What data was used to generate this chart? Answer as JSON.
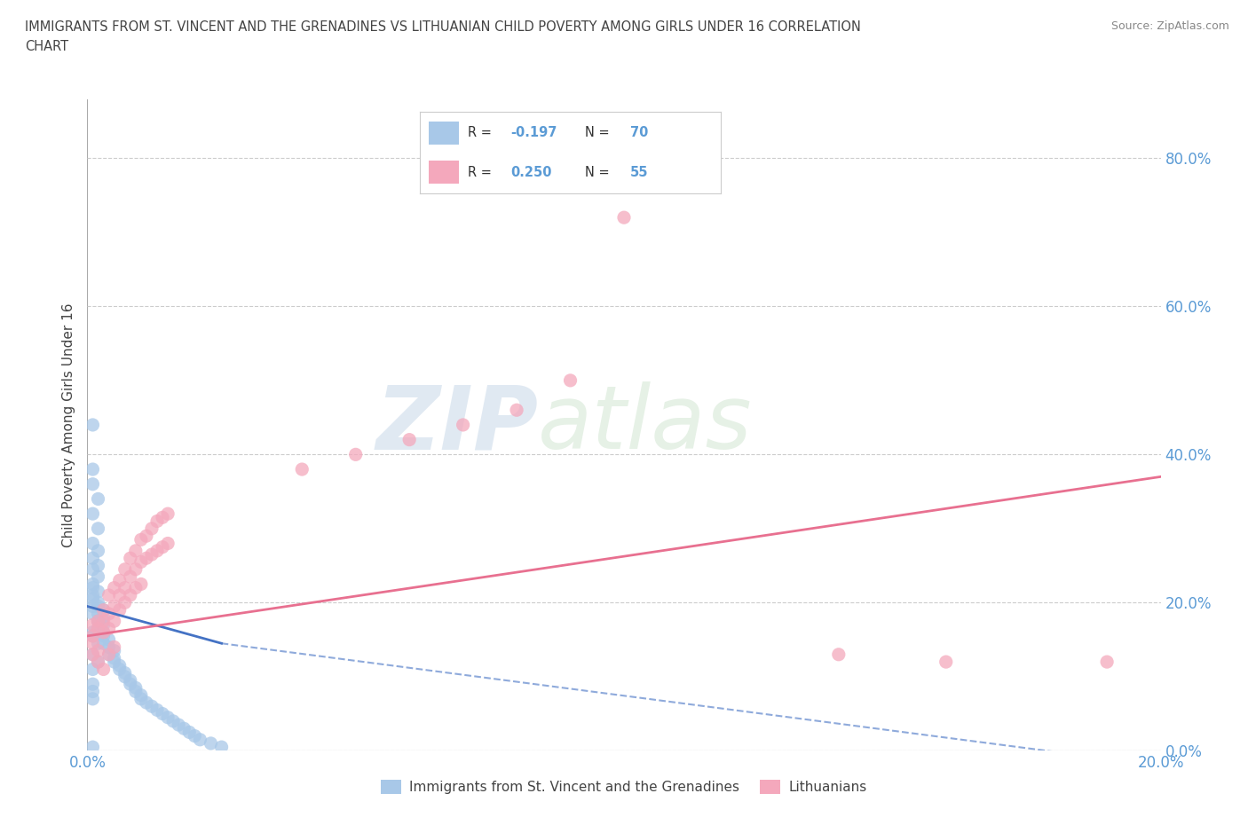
{
  "title_line1": "IMMIGRANTS FROM ST. VINCENT AND THE GRENADINES VS LITHUANIAN CHILD POVERTY AMONG GIRLS UNDER 16 CORRELATION",
  "title_line2": "CHART",
  "source": "Source: ZipAtlas.com",
  "ylabel": "Child Poverty Among Girls Under 16",
  "xlim": [
    0.0,
    0.2
  ],
  "ylim": [
    0.0,
    0.88
  ],
  "yticks": [
    0.0,
    0.2,
    0.4,
    0.6,
    0.8
  ],
  "ytick_labels": [
    "0.0%",
    "20.0%",
    "40.0%",
    "60.0%",
    "80.0%"
  ],
  "xticks": [
    0.0,
    0.05,
    0.1,
    0.15,
    0.2
  ],
  "xtick_labels": [
    "0.0%",
    "",
    "",
    "",
    "20.0%"
  ],
  "legend_r1": "R = -0.197",
  "legend_n1": "N = 70",
  "legend_r2": "R = 0.250",
  "legend_n2": "N = 55",
  "blue_color": "#a8c8e8",
  "pink_color": "#f4a8bc",
  "blue_line_color": "#4472c4",
  "pink_line_color": "#e87090",
  "watermark_zip": "ZIP",
  "watermark_atlas": "atlas",
  "blue_scatter": [
    [
      0.001,
      0.44
    ],
    [
      0.001,
      0.38
    ],
    [
      0.001,
      0.36
    ],
    [
      0.002,
      0.34
    ],
    [
      0.001,
      0.32
    ],
    [
      0.002,
      0.3
    ],
    [
      0.001,
      0.28
    ],
    [
      0.002,
      0.27
    ],
    [
      0.001,
      0.26
    ],
    [
      0.002,
      0.25
    ],
    [
      0.001,
      0.245
    ],
    [
      0.002,
      0.235
    ],
    [
      0.001,
      0.225
    ],
    [
      0.002,
      0.215
    ],
    [
      0.001,
      0.205
    ],
    [
      0.002,
      0.2
    ],
    [
      0.001,
      0.195
    ],
    [
      0.002,
      0.185
    ],
    [
      0.003,
      0.18
    ],
    [
      0.002,
      0.175
    ],
    [
      0.003,
      0.17
    ],
    [
      0.002,
      0.165
    ],
    [
      0.003,
      0.16
    ],
    [
      0.003,
      0.155
    ],
    [
      0.004,
      0.15
    ],
    [
      0.003,
      0.145
    ],
    [
      0.004,
      0.14
    ],
    [
      0.005,
      0.135
    ],
    [
      0.004,
      0.13
    ],
    [
      0.005,
      0.125
    ],
    [
      0.005,
      0.12
    ],
    [
      0.006,
      0.115
    ],
    [
      0.006,
      0.11
    ],
    [
      0.007,
      0.105
    ],
    [
      0.007,
      0.1
    ],
    [
      0.008,
      0.095
    ],
    [
      0.008,
      0.09
    ],
    [
      0.009,
      0.085
    ],
    [
      0.009,
      0.08
    ],
    [
      0.01,
      0.075
    ],
    [
      0.01,
      0.07
    ],
    [
      0.011,
      0.065
    ],
    [
      0.012,
      0.06
    ],
    [
      0.013,
      0.055
    ],
    [
      0.014,
      0.05
    ],
    [
      0.015,
      0.045
    ],
    [
      0.016,
      0.04
    ],
    [
      0.017,
      0.035
    ],
    [
      0.018,
      0.03
    ],
    [
      0.019,
      0.025
    ],
    [
      0.02,
      0.02
    ],
    [
      0.021,
      0.015
    ],
    [
      0.023,
      0.01
    ],
    [
      0.025,
      0.005
    ],
    [
      0.001,
      0.22
    ],
    [
      0.001,
      0.21
    ],
    [
      0.002,
      0.195
    ],
    [
      0.003,
      0.19
    ],
    [
      0.001,
      0.185
    ],
    [
      0.002,
      0.175
    ],
    [
      0.001,
      0.16
    ],
    [
      0.001,
      0.155
    ],
    [
      0.002,
      0.145
    ],
    [
      0.001,
      0.13
    ],
    [
      0.002,
      0.12
    ],
    [
      0.001,
      0.11
    ],
    [
      0.001,
      0.09
    ],
    [
      0.001,
      0.08
    ],
    [
      0.001,
      0.07
    ],
    [
      0.001,
      0.005
    ]
  ],
  "pink_scatter": [
    [
      0.001,
      0.17
    ],
    [
      0.001,
      0.155
    ],
    [
      0.001,
      0.145
    ],
    [
      0.002,
      0.175
    ],
    [
      0.002,
      0.165
    ],
    [
      0.002,
      0.135
    ],
    [
      0.003,
      0.19
    ],
    [
      0.003,
      0.175
    ],
    [
      0.003,
      0.16
    ],
    [
      0.004,
      0.21
    ],
    [
      0.004,
      0.185
    ],
    [
      0.004,
      0.165
    ],
    [
      0.005,
      0.22
    ],
    [
      0.005,
      0.195
    ],
    [
      0.005,
      0.175
    ],
    [
      0.006,
      0.23
    ],
    [
      0.006,
      0.21
    ],
    [
      0.006,
      0.19
    ],
    [
      0.007,
      0.245
    ],
    [
      0.007,
      0.22
    ],
    [
      0.007,
      0.2
    ],
    [
      0.008,
      0.26
    ],
    [
      0.008,
      0.235
    ],
    [
      0.008,
      0.21
    ],
    [
      0.009,
      0.27
    ],
    [
      0.009,
      0.245
    ],
    [
      0.009,
      0.22
    ],
    [
      0.01,
      0.285
    ],
    [
      0.01,
      0.255
    ],
    [
      0.01,
      0.225
    ],
    [
      0.011,
      0.29
    ],
    [
      0.011,
      0.26
    ],
    [
      0.012,
      0.3
    ],
    [
      0.012,
      0.265
    ],
    [
      0.013,
      0.31
    ],
    [
      0.013,
      0.27
    ],
    [
      0.014,
      0.315
    ],
    [
      0.014,
      0.275
    ],
    [
      0.015,
      0.32
    ],
    [
      0.015,
      0.28
    ],
    [
      0.001,
      0.13
    ],
    [
      0.002,
      0.12
    ],
    [
      0.003,
      0.11
    ],
    [
      0.004,
      0.13
    ],
    [
      0.005,
      0.14
    ],
    [
      0.04,
      0.38
    ],
    [
      0.05,
      0.4
    ],
    [
      0.06,
      0.42
    ],
    [
      0.07,
      0.44
    ],
    [
      0.08,
      0.46
    ],
    [
      0.09,
      0.5
    ],
    [
      0.1,
      0.72
    ],
    [
      0.14,
      0.13
    ],
    [
      0.16,
      0.12
    ],
    [
      0.19,
      0.12
    ]
  ]
}
